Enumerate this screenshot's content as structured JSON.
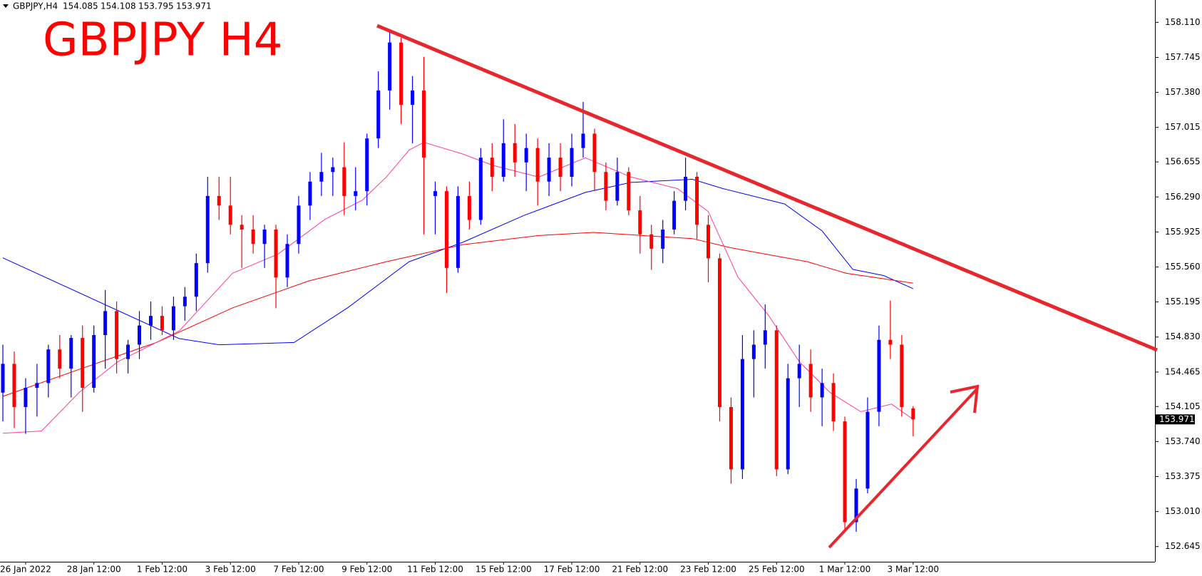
{
  "chart_data": {
    "type": "candlestick",
    "title": "GBPJPY H4",
    "subtitle": "GBPJPY,H4",
    "up_color": "#0000ff",
    "down_color": "#ff0000",
    "categories": [
      null,
      null,
      "26 Jan 2022",
      null,
      null,
      null,
      null,
      null,
      "28 Jan 12:00",
      null,
      null,
      null,
      null,
      null,
      "1 Feb 12:00",
      null,
      null,
      null,
      null,
      null,
      "3 Feb 12:00",
      null,
      null,
      null,
      null,
      null,
      "7 Feb 12:00",
      null,
      null,
      null,
      null,
      null,
      "9 Feb 12:00",
      null,
      null,
      null,
      null,
      null,
      "11 Feb 12:00",
      null,
      null,
      null,
      null,
      null,
      "15 Feb 12:00",
      null,
      null,
      null,
      null,
      null,
      "17 Feb 12:00",
      null,
      null,
      null,
      null,
      null,
      "21 Feb 12:00",
      null,
      null,
      null,
      null,
      null,
      "23 Feb 12:00",
      null,
      null,
      null,
      null,
      null,
      "25 Feb 12:00",
      null,
      null,
      null,
      null,
      null,
      "1 Mar 12:00",
      null,
      null,
      null,
      null,
      null,
      "3 Mar 12:00"
    ],
    "candles": [
      [
        154.25,
        154.75,
        153.95,
        154.55
      ],
      [
        154.55,
        154.68,
        153.88,
        154.1
      ],
      [
        154.1,
        154.4,
        153.82,
        154.3
      ],
      [
        154.3,
        154.55,
        154.0,
        154.35
      ],
      [
        154.35,
        154.75,
        154.2,
        154.7
      ],
      [
        154.7,
        154.85,
        154.4,
        154.5
      ],
      [
        154.5,
        154.85,
        154.2,
        154.82
      ],
      [
        154.82,
        154.95,
        154.05,
        154.3
      ],
      [
        154.3,
        154.95,
        154.25,
        154.85
      ],
      [
        154.85,
        155.32,
        154.5,
        155.1
      ],
      [
        155.1,
        155.2,
        154.45,
        154.6
      ],
      [
        154.6,
        154.8,
        154.45,
        154.75
      ],
      [
        154.75,
        155.1,
        154.6,
        154.95
      ],
      [
        154.95,
        155.2,
        154.8,
        155.05
      ],
      [
        155.05,
        155.15,
        154.85,
        154.9
      ],
      [
        154.9,
        155.25,
        154.8,
        155.15
      ],
      [
        155.15,
        155.35,
        155.0,
        155.25
      ],
      [
        155.25,
        155.7,
        155.1,
        155.6
      ],
      [
        155.6,
        156.5,
        155.5,
        156.3
      ],
      [
        156.3,
        156.5,
        156.05,
        156.2
      ],
      [
        156.2,
        156.5,
        155.9,
        156.0
      ],
      [
        156.0,
        156.1,
        155.55,
        155.95
      ],
      [
        155.95,
        156.1,
        155.7,
        155.8
      ],
      [
        155.8,
        156.0,
        155.55,
        155.95
      ],
      [
        155.95,
        156.0,
        155.13,
        155.45
      ],
      [
        155.45,
        155.9,
        155.35,
        155.8
      ],
      [
        155.8,
        156.3,
        155.7,
        156.2
      ],
      [
        156.2,
        156.55,
        156.05,
        156.45
      ],
      [
        156.45,
        156.75,
        156.3,
        156.55
      ],
      [
        156.55,
        156.7,
        156.3,
        156.6
      ],
      [
        156.6,
        156.86,
        156.1,
        156.3
      ],
      [
        156.3,
        156.6,
        156.15,
        156.35
      ],
      [
        156.35,
        156.95,
        156.2,
        156.9
      ],
      [
        156.9,
        157.6,
        156.8,
        157.4
      ],
      [
        157.4,
        158.02,
        157.2,
        157.9
      ],
      [
        157.9,
        157.95,
        157.05,
        157.25
      ],
      [
        157.25,
        157.55,
        156.85,
        157.4
      ],
      [
        157.4,
        157.75,
        155.9,
        156.7
      ],
      [
        156.3,
        156.45,
        155.9,
        156.35
      ],
      [
        156.35,
        156.4,
        155.29,
        155.55
      ],
      [
        155.55,
        156.4,
        155.5,
        156.3
      ],
      [
        156.3,
        156.45,
        155.95,
        156.05
      ],
      [
        156.05,
        156.8,
        156.0,
        156.7
      ],
      [
        156.7,
        156.85,
        156.35,
        156.5
      ],
      [
        156.5,
        157.1,
        156.45,
        156.85
      ],
      [
        156.85,
        157.05,
        156.5,
        156.65
      ],
      [
        156.65,
        156.95,
        156.35,
        156.8
      ],
      [
        156.8,
        156.9,
        156.2,
        156.45
      ],
      [
        156.45,
        156.85,
        156.3,
        156.7
      ],
      [
        156.7,
        156.85,
        156.35,
        156.5
      ],
      [
        156.5,
        156.95,
        156.4,
        156.8
      ],
      [
        156.8,
        157.28,
        156.7,
        156.95
      ],
      [
        156.95,
        157.0,
        156.35,
        156.55
      ],
      [
        156.55,
        156.65,
        156.15,
        156.25
      ],
      [
        156.25,
        156.7,
        156.2,
        156.55
      ],
      [
        156.55,
        156.6,
        156.1,
        156.15
      ],
      [
        156.15,
        156.3,
        155.7,
        155.9
      ],
      [
        155.9,
        156.0,
        155.53,
        155.75
      ],
      [
        155.75,
        156.05,
        155.6,
        155.95
      ],
      [
        155.95,
        156.35,
        155.9,
        156.25
      ],
      [
        156.25,
        156.7,
        156.15,
        156.5
      ],
      [
        156.5,
        156.55,
        155.85,
        156.0
      ],
      [
        156.0,
        156.1,
        155.4,
        155.65
      ],
      [
        155.65,
        155.7,
        153.95,
        154.1
      ],
      [
        154.1,
        154.2,
        153.3,
        153.45
      ],
      [
        153.45,
        154.85,
        153.35,
        154.6
      ],
      [
        154.6,
        154.9,
        154.2,
        154.75
      ],
      [
        154.75,
        155.17,
        154.5,
        154.9
      ],
      [
        154.9,
        154.95,
        153.38,
        153.45
      ],
      [
        153.45,
        154.55,
        153.4,
        154.4
      ],
      [
        154.4,
        154.75,
        154.1,
        154.55
      ],
      [
        154.55,
        154.7,
        154.05,
        154.2
      ],
      [
        154.2,
        154.5,
        153.9,
        154.35
      ],
      [
        154.35,
        154.45,
        153.85,
        153.95
      ],
      [
        153.95,
        154.0,
        152.8,
        152.9
      ],
      [
        152.9,
        153.35,
        152.8,
        153.25
      ],
      [
        153.25,
        154.2,
        153.2,
        154.05
      ],
      [
        154.05,
        154.95,
        153.9,
        154.8
      ],
      [
        154.8,
        155.21,
        154.6,
        154.75
      ],
      [
        154.75,
        154.85,
        154.0,
        154.1
      ],
      [
        154.085,
        154.108,
        153.795,
        153.971
      ]
    ],
    "series": [
      {
        "color": "#0000ff",
        "x": [
          0,
          15.5,
          19,
          25.6,
          30.3,
          35.7,
          40.4,
          45.8,
          51.2,
          55.2,
          60.6,
          63.3,
          68.7,
          72,
          74.7,
          77.4,
          80
        ],
        "values": [
          155.655,
          154.813,
          154.749,
          154.773,
          155.134,
          155.615,
          155.816,
          156.097,
          156.337,
          156.441,
          156.474,
          156.377,
          156.217,
          155.936,
          155.535,
          155.471,
          155.334
        ]
      },
      {
        "color": "#ff0000",
        "x": [
          0,
          6.7,
          13.5,
          20.2,
          26.9,
          33.7,
          40.4,
          47.1,
          51.9,
          57.2,
          60.6,
          64,
          70.7,
          74.1,
          80
        ],
        "values": [
          154.211,
          154.492,
          154.773,
          155.134,
          155.415,
          155.615,
          155.792,
          155.888,
          155.92,
          155.88,
          155.856,
          155.76,
          155.615,
          155.495,
          155.391
        ]
      },
      {
        "color": "#ff3c9b",
        "x": [
          0,
          3.4,
          6.7,
          10.1,
          15.5,
          20.2,
          24.2,
          28.3,
          31.6,
          33.7,
          35.7,
          37,
          40.4,
          43.1,
          47.1,
          51.2,
          55.2,
          59.3,
          62,
          64.6,
          67.3,
          70,
          72.7,
          75.4,
          78.1,
          80
        ],
        "values": [
          153.826,
          153.85,
          154.251,
          154.572,
          154.893,
          155.495,
          155.695,
          156.056,
          156.257,
          156.498,
          156.779,
          156.859,
          156.738,
          156.618,
          156.498,
          156.698,
          156.498,
          156.377,
          156.137,
          155.455,
          155.054,
          154.572,
          154.251,
          154.051,
          154.131,
          153.971
        ]
      }
    ],
    "ylim": [
      152.487,
      158.343
    ],
    "yticks": [
      {
        "value": 158.11,
        "label": "158.110"
      },
      157.745,
      {
        "value": 157.38,
        "label": "157.380"
      },
      157.015,
      156.655,
      {
        "value": 156.29,
        "label": "156.290"
      },
      155.925,
      {
        "value": 155.56,
        "label": "155.560"
      },
      155.195,
      {
        "value": 154.83,
        "label": "154.830"
      },
      154.465,
      154.105,
      {
        "value": 153.74,
        "label": "153.740"
      },
      153.375,
      {
        "value": 153.01,
        "label": "153.010"
      },
      152.645
    ]
  }
}
